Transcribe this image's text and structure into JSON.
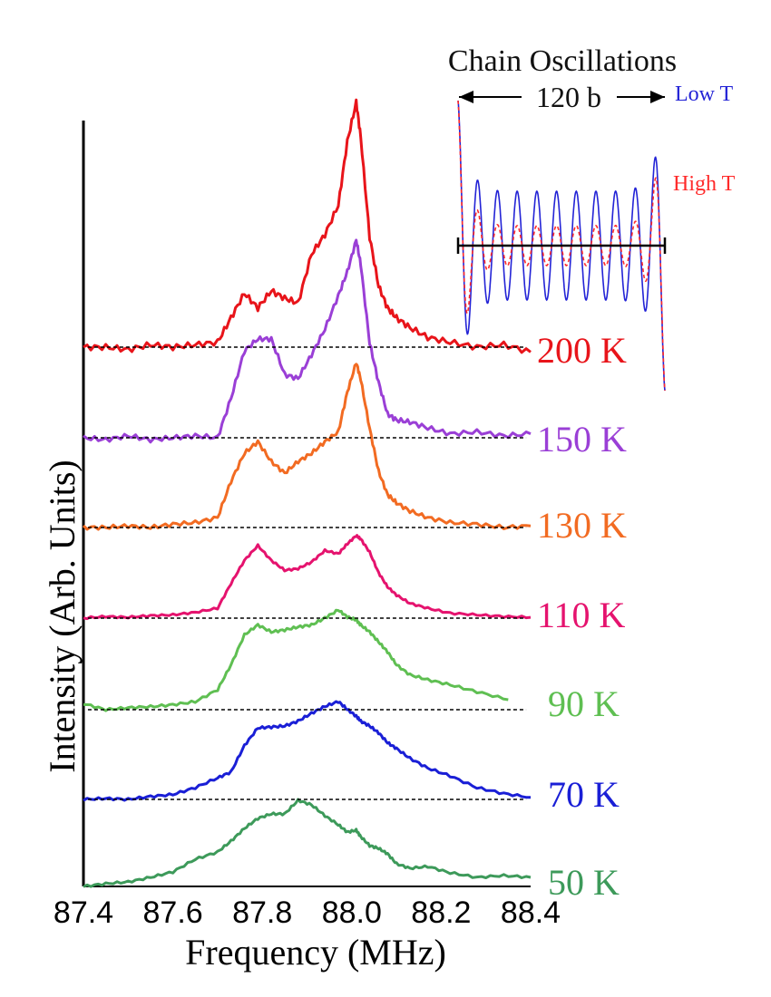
{
  "chart_data": {
    "type": "line",
    "xlabel": "Frequency (MHz)",
    "ylabel": "Intensity (Arb. Units)",
    "xlim": [
      87.4,
      88.4
    ],
    "x_ticks": [
      "87.4",
      "87.6",
      "87.8",
      "88.0",
      "88.2",
      "88.4"
    ],
    "grid": false,
    "legend": "labels at right of each trace",
    "series": [
      {
        "name": "200 K",
        "color": "#e8141a",
        "baseline_dashed": true,
        "x": [
          87.4,
          87.45,
          87.5,
          87.55,
          87.6,
          87.65,
          87.7,
          87.73,
          87.76,
          87.79,
          87.82,
          87.85,
          87.88,
          87.91,
          87.94,
          87.97,
          87.99,
          88.01,
          88.02,
          88.04,
          88.06,
          88.08,
          88.1,
          88.13,
          88.17,
          88.22,
          88.28,
          88.34,
          88.4
        ],
        "y": [
          0.0,
          0.0,
          -0.01,
          0.01,
          0.0,
          0.01,
          0.02,
          0.12,
          0.22,
          0.16,
          0.23,
          0.2,
          0.18,
          0.38,
          0.46,
          0.58,
          0.84,
          1.0,
          0.86,
          0.45,
          0.25,
          0.16,
          0.12,
          0.08,
          0.04,
          0.02,
          0.0,
          0.01,
          -0.02
        ]
      },
      {
        "name": "150 K",
        "color": "#9a3fd6",
        "baseline_dashed": true,
        "x": [
          87.4,
          87.45,
          87.5,
          87.55,
          87.6,
          87.65,
          87.7,
          87.73,
          87.76,
          87.79,
          87.82,
          87.85,
          87.88,
          87.91,
          87.94,
          87.97,
          87.99,
          88.01,
          88.02,
          88.04,
          88.06,
          88.08,
          88.1,
          88.13,
          88.17,
          88.22,
          88.28,
          88.34,
          88.4
        ],
        "y": [
          0.0,
          -0.01,
          0.01,
          -0.01,
          0.0,
          0.01,
          0.0,
          0.2,
          0.44,
          0.5,
          0.5,
          0.32,
          0.3,
          0.42,
          0.55,
          0.72,
          0.84,
          1.0,
          0.88,
          0.48,
          0.28,
          0.12,
          0.09,
          0.08,
          0.05,
          0.02,
          0.03,
          0.01,
          0.02
        ]
      },
      {
        "name": "130 K",
        "color": "#f26b22",
        "baseline_dashed": true,
        "x": [
          87.4,
          87.45,
          87.5,
          87.55,
          87.6,
          87.65,
          87.7,
          87.73,
          87.76,
          87.79,
          87.82,
          87.85,
          87.88,
          87.91,
          87.94,
          87.97,
          87.99,
          88.01,
          88.02,
          88.04,
          88.06,
          88.08,
          88.1,
          88.13,
          88.17,
          88.22,
          88.28,
          88.34,
          88.4
        ],
        "y": [
          0.0,
          0.0,
          0.01,
          0.0,
          0.02,
          0.03,
          0.06,
          0.28,
          0.45,
          0.52,
          0.4,
          0.33,
          0.4,
          0.45,
          0.52,
          0.58,
          0.82,
          1.0,
          0.9,
          0.6,
          0.34,
          0.2,
          0.15,
          0.1,
          0.06,
          0.03,
          0.02,
          0.0,
          0.01
        ]
      },
      {
        "name": "110 K",
        "color": "#e5136e",
        "baseline_dashed": true,
        "x": [
          87.4,
          87.45,
          87.5,
          87.55,
          87.6,
          87.65,
          87.7,
          87.73,
          87.76,
          87.79,
          87.82,
          87.85,
          87.88,
          87.91,
          87.94,
          87.97,
          87.99,
          88.01,
          88.02,
          88.04,
          88.06,
          88.08,
          88.1,
          88.13,
          88.17,
          88.22,
          88.28,
          88.34,
          88.4
        ],
        "y": [
          0.0,
          0.02,
          0.01,
          0.03,
          0.04,
          0.07,
          0.12,
          0.42,
          0.7,
          0.88,
          0.7,
          0.58,
          0.6,
          0.68,
          0.82,
          0.78,
          0.9,
          1.0,
          0.96,
          0.8,
          0.55,
          0.38,
          0.28,
          0.18,
          0.12,
          0.06,
          0.04,
          0.02,
          0.01
        ]
      },
      {
        "name": "90 K",
        "color": "#5fbf52",
        "baseline_dashed": true,
        "x": [
          87.4,
          87.45,
          87.5,
          87.55,
          87.6,
          87.65,
          87.7,
          87.73,
          87.76,
          87.79,
          87.82,
          87.85,
          87.88,
          87.91,
          87.94,
          87.97,
          87.99,
          88.01,
          88.02,
          88.04,
          88.06,
          88.08,
          88.1,
          88.13,
          88.17,
          88.22,
          88.28,
          88.35
        ],
        "y": [
          0.06,
          0.0,
          0.02,
          0.03,
          0.05,
          0.08,
          0.2,
          0.45,
          0.75,
          0.85,
          0.78,
          0.8,
          0.83,
          0.85,
          0.92,
          1.0,
          0.93,
          0.9,
          0.85,
          0.78,
          0.68,
          0.58,
          0.45,
          0.35,
          0.3,
          0.25,
          0.18,
          0.1
        ]
      },
      {
        "name": "70 K",
        "color": "#1a1fd6",
        "baseline_dashed": true,
        "x": [
          87.4,
          87.45,
          87.5,
          87.55,
          87.6,
          87.65,
          87.7,
          87.73,
          87.76,
          87.79,
          87.82,
          87.85,
          87.88,
          87.91,
          87.94,
          87.97,
          87.99,
          88.01,
          88.02,
          88.04,
          88.06,
          88.08,
          88.1,
          88.13,
          88.17,
          88.22,
          88.28,
          88.34,
          88.4
        ],
        "y": [
          0.0,
          0.01,
          0.0,
          0.03,
          0.05,
          0.12,
          0.22,
          0.28,
          0.55,
          0.73,
          0.74,
          0.75,
          0.8,
          0.88,
          0.95,
          1.0,
          0.92,
          0.85,
          0.8,
          0.75,
          0.68,
          0.58,
          0.52,
          0.42,
          0.32,
          0.24,
          0.12,
          0.06,
          0.02
        ]
      },
      {
        "name": "50 K",
        "color": "#3d9a5a",
        "baseline_dashed": false,
        "x": [
          87.4,
          87.45,
          87.5,
          87.55,
          87.6,
          87.65,
          87.7,
          87.73,
          87.76,
          87.79,
          87.82,
          87.85,
          87.88,
          87.91,
          87.94,
          87.97,
          87.99,
          88.01,
          88.02,
          88.04,
          88.06,
          88.08,
          88.1,
          88.13,
          88.17,
          88.22,
          88.28,
          88.34,
          88.4
        ],
        "y": [
          0.0,
          0.03,
          0.05,
          0.1,
          0.16,
          0.3,
          0.38,
          0.5,
          0.64,
          0.75,
          0.8,
          0.8,
          0.95,
          0.9,
          0.78,
          0.68,
          0.6,
          0.62,
          0.55,
          0.45,
          0.42,
          0.36,
          0.25,
          0.2,
          0.22,
          0.15,
          0.1,
          0.12,
          0.1
        ]
      }
    ],
    "inset": {
      "title": "Chain Oscillations",
      "span_label": "120 b",
      "series": [
        {
          "name": "Low T",
          "color": "#2323d6",
          "style": "solid"
        },
        {
          "name": "High T",
          "color": "#ff2a2a",
          "style": "dashed"
        }
      ],
      "oscillations": 10
    }
  }
}
